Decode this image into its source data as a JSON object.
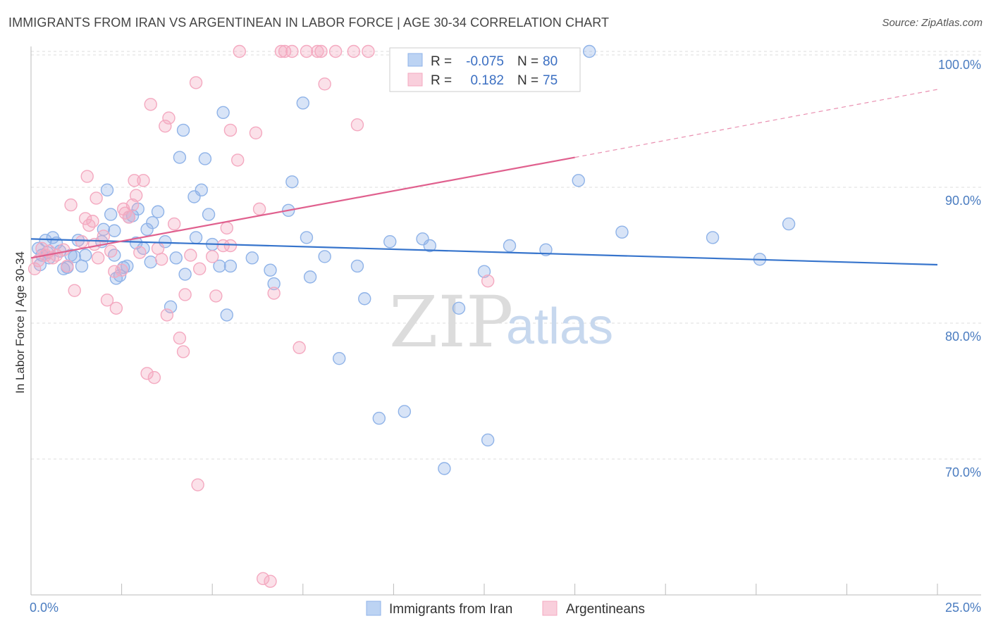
{
  "title": "IMMIGRANTS FROM IRAN VS ARGENTINEAN IN LABOR FORCE | AGE 30-34 CORRELATION CHART",
  "source": "Source: ZipAtlas.com",
  "watermark": {
    "zip": "ZIP",
    "atlas": "atlas"
  },
  "legend": {
    "r_label": "R =",
    "n_label": "N =",
    "rows": [
      {
        "r": "-0.075",
        "n": "80"
      },
      {
        "r": "0.182",
        "n": "75"
      }
    ]
  },
  "chart_data": {
    "type": "scatter",
    "title": "IMMIGRANTS FROM IRAN VS ARGENTINEAN IN LABOR FORCE | AGE 30-34 CORRELATION CHART",
    "xlabel": "",
    "ylabel": "In Labor Force | Age 30-34",
    "xlim": [
      0,
      25
    ],
    "ylim": [
      60,
      100
    ],
    "x_tick_labels": [
      "0.0%",
      "25.0%"
    ],
    "y_tick_labels": [
      "70.0%",
      "80.0%",
      "90.0%",
      "100.0%"
    ],
    "y_ticks": [
      70,
      80,
      90,
      100
    ],
    "grid": true,
    "legend_placement": "bottom-center",
    "series": [
      {
        "name": "Immigrants from Iran",
        "color": "#8fb3e8",
        "line_color": "#3674cc",
        "r": -0.075,
        "n": 80,
        "trend": [
          [
            0,
            86.2
          ],
          [
            25,
            84.3
          ]
        ],
        "points": [
          [
            0.2,
            85.5
          ],
          [
            0.3,
            85.0
          ],
          [
            0.4,
            86.1
          ],
          [
            0.5,
            84.8
          ],
          [
            0.6,
            86.3
          ],
          [
            0.7,
            85.9
          ],
          [
            0.8,
            85.3
          ],
          [
            1.0,
            84.1
          ],
          [
            1.1,
            85.0
          ],
          [
            1.3,
            86.1
          ],
          [
            1.4,
            84.2
          ],
          [
            1.5,
            85.0
          ],
          [
            1.95,
            86.0
          ],
          [
            2.0,
            86.9
          ],
          [
            2.1,
            89.8
          ],
          [
            2.2,
            88.0
          ],
          [
            2.3,
            86.8
          ],
          [
            2.3,
            85.0
          ],
          [
            2.35,
            83.3
          ],
          [
            2.45,
            83.5
          ],
          [
            2.55,
            84.1
          ],
          [
            2.65,
            84.2
          ],
          [
            2.7,
            87.8
          ],
          [
            2.8,
            87.9
          ],
          [
            2.9,
            85.9
          ],
          [
            2.95,
            88.4
          ],
          [
            3.1,
            85.5
          ],
          [
            3.2,
            86.9
          ],
          [
            3.35,
            87.4
          ],
          [
            3.5,
            88.2
          ],
          [
            3.7,
            86.0
          ],
          [
            3.85,
            81.2
          ],
          [
            4.0,
            84.8
          ],
          [
            4.1,
            92.2
          ],
          [
            4.2,
            94.2
          ],
          [
            4.25,
            83.6
          ],
          [
            4.5,
            89.3
          ],
          [
            4.55,
            86.3
          ],
          [
            4.7,
            89.8
          ],
          [
            4.8,
            92.1
          ],
          [
            4.9,
            88.0
          ],
          [
            5.0,
            85.8
          ],
          [
            5.2,
            84.2
          ],
          [
            5.3,
            95.5
          ],
          [
            5.4,
            80.6
          ],
          [
            5.5,
            84.2
          ],
          [
            6.1,
            84.8
          ],
          [
            6.6,
            83.9
          ],
          [
            6.7,
            82.9
          ],
          [
            7.1,
            88.3
          ],
          [
            7.2,
            90.4
          ],
          [
            7.5,
            96.2
          ],
          [
            7.6,
            86.3
          ],
          [
            7.7,
            83.4
          ],
          [
            8.1,
            84.9
          ],
          [
            8.5,
            77.4
          ],
          [
            9.0,
            84.2
          ],
          [
            9.2,
            81.8
          ],
          [
            9.6,
            73.0
          ],
          [
            9.9,
            86.0
          ],
          [
            10.3,
            73.5
          ],
          [
            10.8,
            86.2
          ],
          [
            11.0,
            85.7
          ],
          [
            11.4,
            69.3
          ],
          [
            11.8,
            81.1
          ],
          [
            12.5,
            83.8
          ],
          [
            12.6,
            71.4
          ],
          [
            13.2,
            85.7
          ],
          [
            14.2,
            85.4
          ],
          [
            15.1,
            90.5
          ],
          [
            15.4,
            100.0
          ],
          [
            16.3,
            86.7
          ],
          [
            18.8,
            86.3
          ],
          [
            20.1,
            84.7
          ],
          [
            20.9,
            87.3
          ],
          [
            0.25,
            84.3
          ],
          [
            0.45,
            85.2
          ],
          [
            1.2,
            84.9
          ],
          [
            0.9,
            84.0
          ],
          [
            3.3,
            84.5
          ]
        ]
      },
      {
        "name": "Argentineans",
        "color": "#f4a9c0",
        "line_color": "#e0608e",
        "r": 0.182,
        "n": 75,
        "trend": [
          [
            0,
            84.8
          ],
          [
            15,
            92.2
          ]
        ],
        "trend_dashed": [
          [
            15,
            92.2
          ],
          [
            25,
            97.2
          ]
        ],
        "points": [
          [
            0.1,
            84.0
          ],
          [
            0.2,
            84.6
          ],
          [
            0.3,
            85.5
          ],
          [
            0.4,
            85.0
          ],
          [
            0.5,
            85.3
          ],
          [
            0.6,
            84.8
          ],
          [
            0.7,
            85.0
          ],
          [
            0.9,
            85.4
          ],
          [
            1.0,
            84.2
          ],
          [
            1.1,
            88.7
          ],
          [
            1.2,
            82.4
          ],
          [
            1.4,
            86.0
          ],
          [
            1.5,
            87.7
          ],
          [
            1.55,
            90.8
          ],
          [
            1.6,
            87.2
          ],
          [
            1.7,
            87.5
          ],
          [
            1.75,
            85.8
          ],
          [
            1.8,
            89.2
          ],
          [
            1.85,
            84.8
          ],
          [
            2.0,
            86.4
          ],
          [
            2.1,
            81.7
          ],
          [
            2.2,
            85.3
          ],
          [
            2.3,
            83.8
          ],
          [
            2.35,
            81.1
          ],
          [
            2.5,
            83.9
          ],
          [
            2.55,
            88.4
          ],
          [
            2.6,
            88.1
          ],
          [
            2.7,
            87.8
          ],
          [
            2.8,
            88.7
          ],
          [
            2.85,
            90.5
          ],
          [
            2.9,
            89.4
          ],
          [
            3.0,
            85.2
          ],
          [
            3.1,
            90.5
          ],
          [
            3.2,
            76.3
          ],
          [
            3.3,
            96.1
          ],
          [
            3.4,
            76.0
          ],
          [
            3.5,
            85.5
          ],
          [
            3.6,
            84.7
          ],
          [
            3.7,
            94.5
          ],
          [
            3.75,
            80.6
          ],
          [
            3.8,
            95.1
          ],
          [
            3.95,
            87.3
          ],
          [
            4.1,
            78.9
          ],
          [
            4.2,
            77.9
          ],
          [
            4.25,
            82.1
          ],
          [
            4.4,
            85.0
          ],
          [
            4.55,
            97.7
          ],
          [
            4.6,
            68.1
          ],
          [
            4.65,
            84.0
          ],
          [
            5.0,
            84.9
          ],
          [
            5.1,
            82.0
          ],
          [
            5.3,
            85.7
          ],
          [
            5.4,
            87.0
          ],
          [
            5.5,
            85.7
          ],
          [
            5.5,
            94.2
          ],
          [
            5.7,
            92.0
          ],
          [
            5.75,
            100.0
          ],
          [
            6.2,
            94.0
          ],
          [
            6.3,
            88.4
          ],
          [
            6.4,
            61.2
          ],
          [
            6.6,
            61.0
          ],
          [
            6.7,
            82.2
          ],
          [
            7.0,
            100.0
          ],
          [
            7.2,
            100.0
          ],
          [
            7.4,
            78.2
          ],
          [
            7.6,
            100.0
          ],
          [
            7.9,
            100.0
          ],
          [
            8.1,
            97.6
          ],
          [
            8.4,
            100.0
          ],
          [
            8.9,
            100.0
          ],
          [
            9.0,
            94.6
          ],
          [
            9.3,
            100.0
          ],
          [
            12.6,
            83.1
          ],
          [
            6.9,
            100.0
          ],
          [
            8.0,
            100.0
          ]
        ]
      }
    ]
  }
}
